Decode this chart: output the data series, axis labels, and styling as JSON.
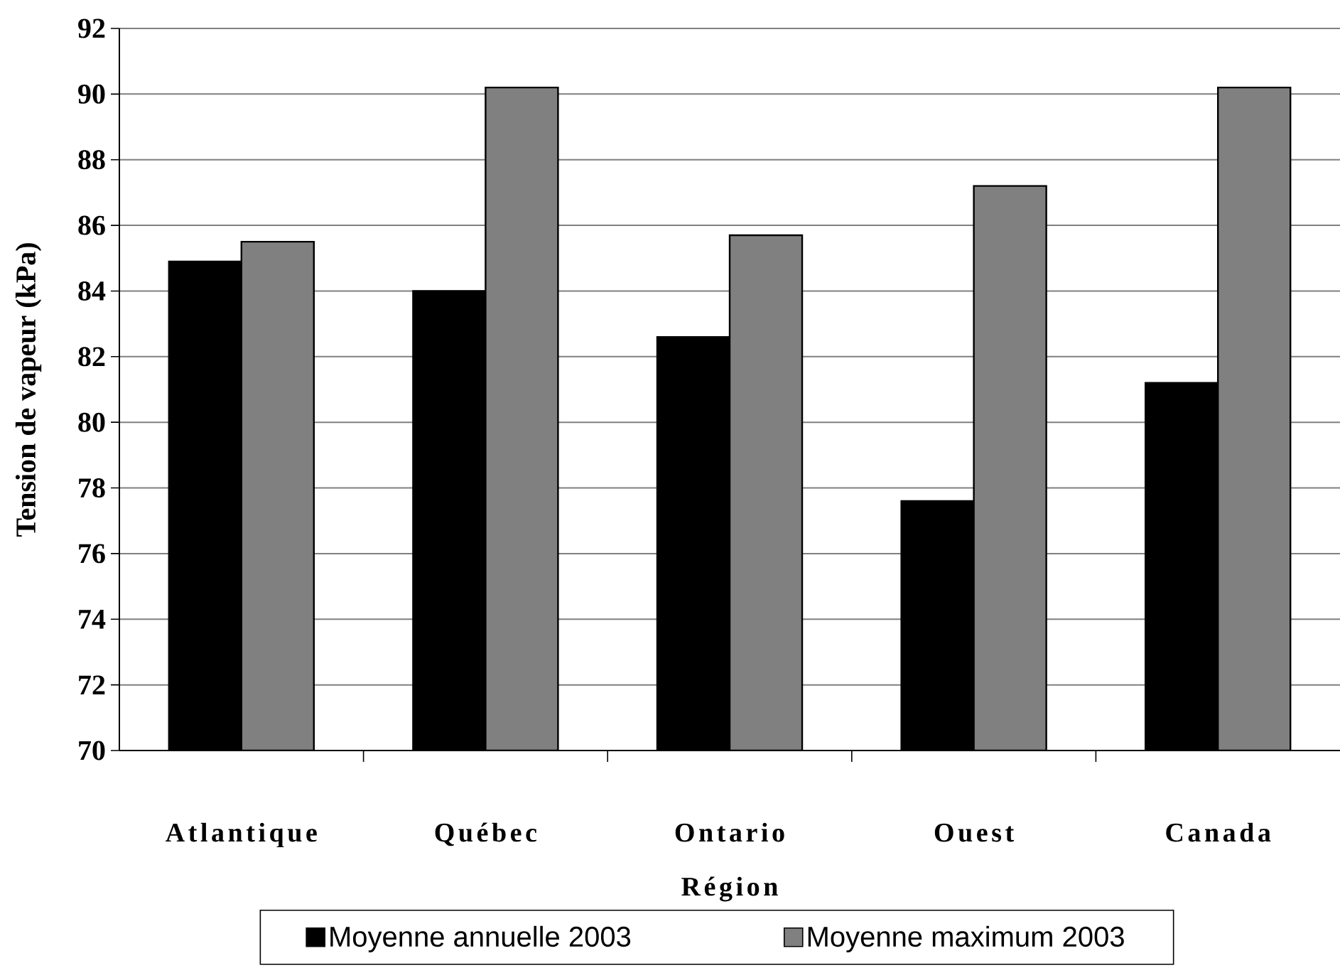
{
  "chart_data": {
    "type": "bar",
    "xlabel": "Région",
    "ylabel": "Tension de vapeur (kPa)",
    "categories": [
      "Atlantique",
      "Québec",
      "Ontario",
      "Ouest",
      "Canada"
    ],
    "series": [
      {
        "name": "Moyenne annuelle 2003",
        "color": "#000000",
        "values": [
          84.9,
          84.0,
          82.6,
          77.6,
          81.2
        ]
      },
      {
        "name": "Moyenne maximum 2003",
        "color": "#808080",
        "values": [
          85.5,
          90.2,
          85.7,
          87.2,
          90.2
        ]
      }
    ],
    "ylim": [
      70,
      92
    ],
    "yticks": [
      70,
      72,
      74,
      76,
      78,
      80,
      82,
      84,
      86,
      88,
      90,
      92
    ],
    "grid": "y",
    "legend": "bottom"
  }
}
